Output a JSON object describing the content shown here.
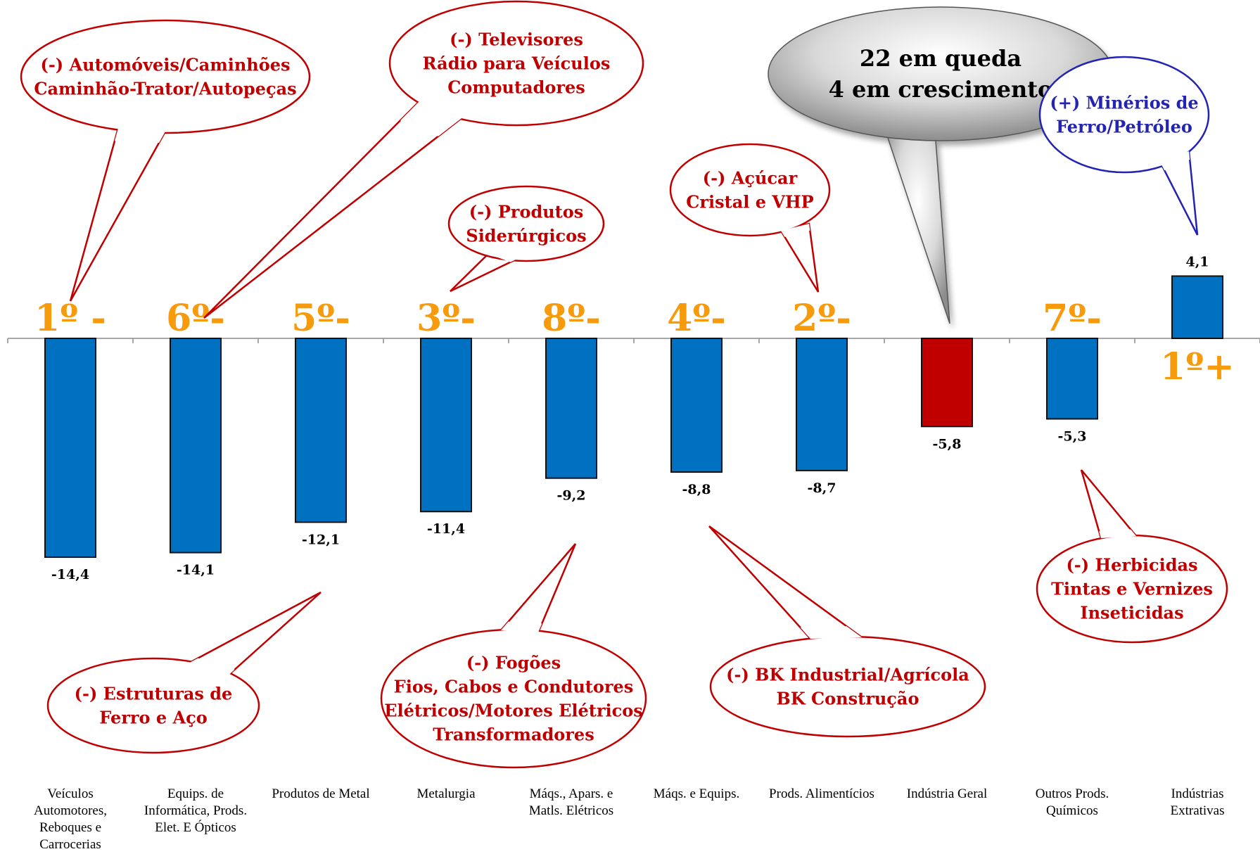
{
  "chart_data": {
    "type": "bar",
    "categories": [
      "Veículos Automotores, Reboques e Carrocerias",
      "Equips. de Informática, Prods. Elet. E Ópticos",
      "Produtos de Metal",
      "Metalurgia",
      "Máqs., Apars. e Matls. Elétricos",
      "Máqs. e Equips.",
      "Prods. Alimentícios",
      "Indústria Geral",
      "Outros Prods. Químicos",
      "Indústrias Extrativas"
    ],
    "category_lines": [
      [
        "Veículos",
        "Automotores,",
        "Reboques e",
        "Carrocerias"
      ],
      [
        "Equips. de",
        "Informática, Prods.",
        "Elet. E Ópticos"
      ],
      [
        "Produtos de Metal"
      ],
      [
        "Metalurgia"
      ],
      [
        "Máqs., Apars. e",
        "Matls. Elétricos"
      ],
      [
        "Máqs. e Equips."
      ],
      [
        "Prods. Alimentícios"
      ],
      [
        "Indústria Geral"
      ],
      [
        "Outros Prods.",
        "Químicos"
      ],
      [
        "Indústrias",
        "Extrativas"
      ]
    ],
    "values": [
      -14.4,
      -14.1,
      -12.1,
      -11.4,
      -9.2,
      -8.8,
      -8.7,
      -5.8,
      -5.3,
      4.1
    ],
    "value_labels": [
      "-14,4",
      "-14,1",
      "-12,1",
      "-11,4",
      "-9,2",
      "-8,8",
      "-8,7",
      "-5,8",
      "-5,3",
      "4,1"
    ],
    "ranks": [
      "1º -",
      "6º-",
      "5º-",
      "3º-",
      "8º-",
      "4º-",
      "2º-",
      "",
      "7º-",
      "1º+"
    ],
    "bar_colors": [
      "#0070c0",
      "#0070c0",
      "#0070c0",
      "#0070c0",
      "#0070c0",
      "#0070c0",
      "#0070c0",
      "#c00000",
      "#0070c0",
      "#0070c0"
    ],
    "highlight_category": "Indústria Geral",
    "ylim": [
      -15.5,
      5
    ],
    "grid": false,
    "title": "",
    "xlabel": "",
    "ylabel": ""
  },
  "callouts": [
    {
      "name": "callout-automoveis",
      "lines": [
        "(-) Automóveis/Caminhões",
        "Caminhão-Trator/Autopeças"
      ],
      "color": "#c00000",
      "target_category": 0
    },
    {
      "name": "callout-televisores",
      "lines": [
        "(-)  Televisores",
        "Rádio para Veículos",
        "Computadores"
      ],
      "color": "#c00000",
      "target_category": 1
    },
    {
      "name": "callout-siderurgicos",
      "lines": [
        "(-) Produtos",
        "Siderúrgicos"
      ],
      "color": "#c00000",
      "target_category": 3
    },
    {
      "name": "callout-acucar",
      "lines": [
        "(-) Açúcar",
        "Cristal e VHP"
      ],
      "color": "#c00000",
      "target_category": 6
    },
    {
      "name": "callout-summary",
      "lines": [
        "22 em queda",
        "4 em crescimento"
      ],
      "color": "#000000",
      "target_category": 7
    },
    {
      "name": "callout-minerios",
      "lines": [
        "(+) Minérios de",
        "Ferro/Petróleo"
      ],
      "color": "#2323b4",
      "target_category": 9
    },
    {
      "name": "callout-estruturas",
      "lines": [
        "(-)  Estruturas de",
        "Ferro e Aço"
      ],
      "color": "#c00000",
      "target_category": 2
    },
    {
      "name": "callout-fogoes",
      "lines": [
        "(-) Fogões",
        "Fios, Cabos e Condutores",
        "Elétricos/Motores Elétricos",
        "Transformadores"
      ],
      "color": "#c00000",
      "target_category": 4
    },
    {
      "name": "callout-bk",
      "lines": [
        "(-) BK Industrial/Agrícola",
        "BK Construção"
      ],
      "color": "#c00000",
      "target_category": 5
    },
    {
      "name": "callout-herbicidas",
      "lines": [
        "(-) Herbicidas",
        "Tintas e Vernizes",
        "Inseticidas"
      ],
      "color": "#c00000",
      "target_category": 8
    }
  ]
}
